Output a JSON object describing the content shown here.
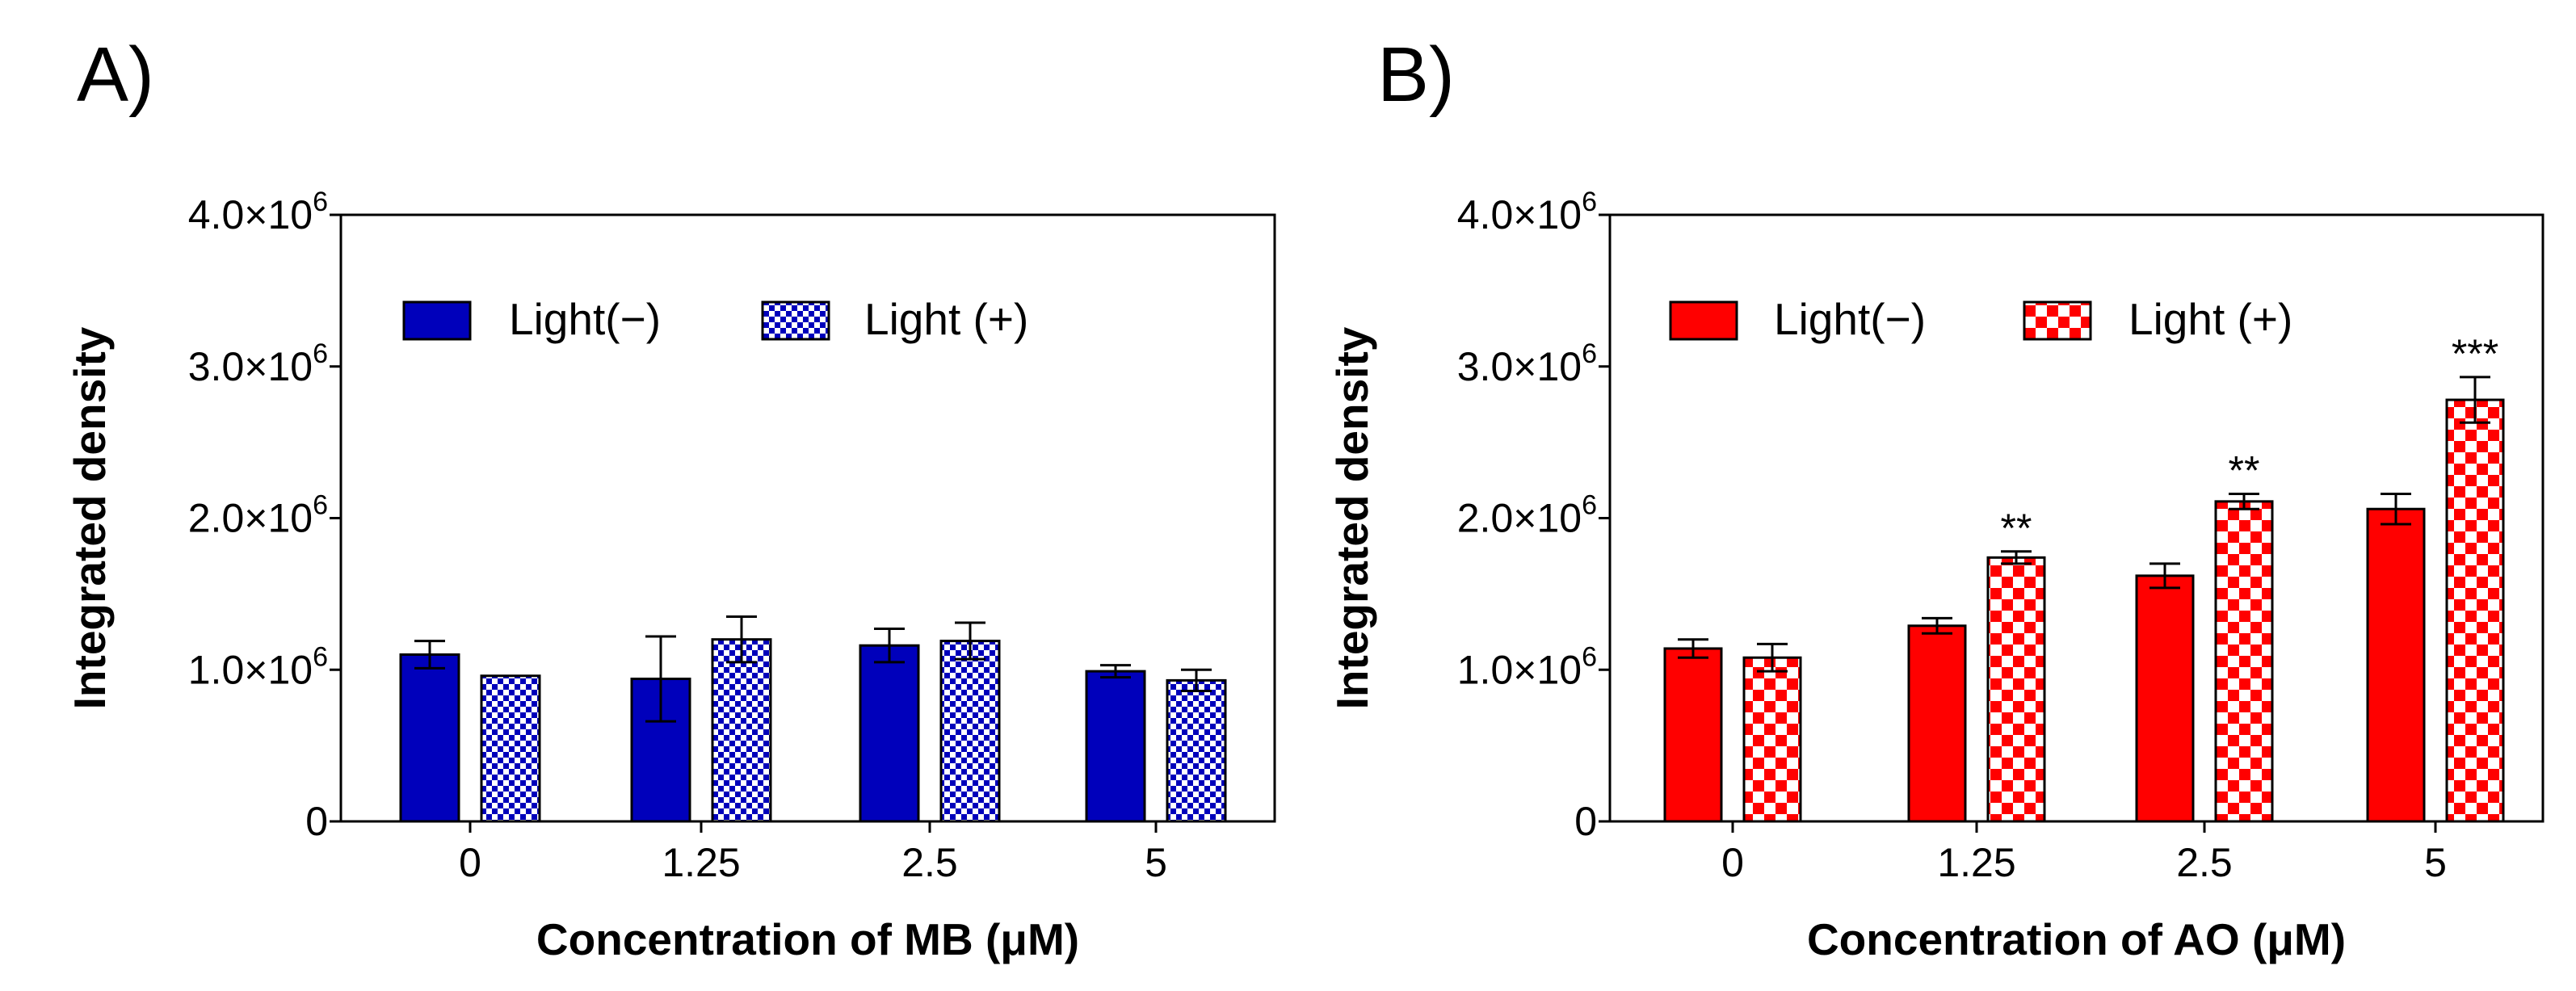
{
  "chart_data": [
    {
      "panel": "A)",
      "type": "bar",
      "categories": [
        "0",
        "1.25",
        "2.5",
        "5"
      ],
      "xlabel": "Concentration of MB (μM)",
      "ylabel": "Integrated density",
      "ylim": [
        0,
        4000000
      ],
      "yticks": [
        {
          "value": 0,
          "label": "0",
          "exp": ""
        },
        {
          "value": 1000000,
          "label": "1.0×10",
          "exp": "6"
        },
        {
          "value": 2000000,
          "label": "2.0×10",
          "exp": "6"
        },
        {
          "value": 3000000,
          "label": "3.0×10",
          "exp": "6"
        },
        {
          "value": 4000000,
          "label": "4.0×10",
          "exp": "6"
        }
      ],
      "grid": false,
      "legend_position": "top-left",
      "series": [
        {
          "name": "Light(−)",
          "pattern": "solid",
          "values": [
            1100000,
            940000,
            1160000,
            990000
          ],
          "errors": [
            90000,
            280000,
            110000,
            40000
          ]
        },
        {
          "name": "Light (+)",
          "pattern": "checker",
          "values": [
            960000,
            1200000,
            1190000,
            930000
          ],
          "errors": [
            0,
            150000,
            120000,
            70000
          ]
        }
      ],
      "annotations": [],
      "color": "#0000bb"
    },
    {
      "panel": "B)",
      "type": "bar",
      "categories": [
        "0",
        "1.25",
        "2.5",
        "5"
      ],
      "xlabel": "Concentration of AO (μM)",
      "ylabel": "Integrated density",
      "ylim": [
        0,
        4000000
      ],
      "yticks": [
        {
          "value": 0,
          "label": "0",
          "exp": ""
        },
        {
          "value": 1000000,
          "label": "1.0×10",
          "exp": "6"
        },
        {
          "value": 2000000,
          "label": "2.0×10",
          "exp": "6"
        },
        {
          "value": 3000000,
          "label": "3.0×10",
          "exp": "6"
        },
        {
          "value": 4000000,
          "label": "4.0×10",
          "exp": "6"
        }
      ],
      "grid": false,
      "legend_position": "top-left",
      "series": [
        {
          "name": "Light(−)",
          "pattern": "solid",
          "values": [
            1140000,
            1290000,
            1620000,
            2060000
          ],
          "errors": [
            60000,
            50000,
            80000,
            100000
          ]
        },
        {
          "name": "Light (+)",
          "pattern": "checker",
          "values": [
            1080000,
            1740000,
            2110000,
            2780000
          ],
          "errors": [
            90000,
            40000,
            50000,
            150000
          ]
        }
      ],
      "annotations": [
        {
          "category": 1,
          "series": 1,
          "text": "**"
        },
        {
          "category": 2,
          "series": 1,
          "text": "**"
        },
        {
          "category": 3,
          "series": 1,
          "text": "***"
        }
      ],
      "color": "#ff0000"
    }
  ]
}
